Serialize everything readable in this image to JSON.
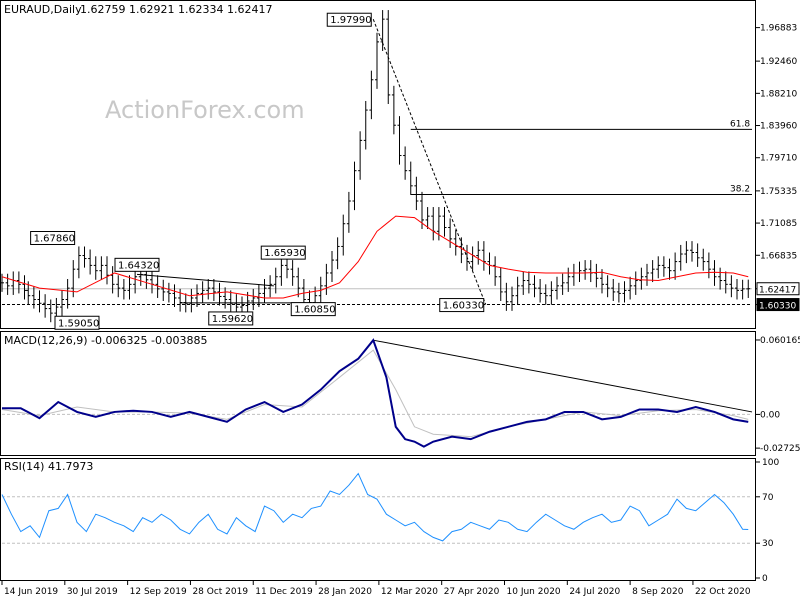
{
  "header": {
    "symbol": "EURAUD,Daily",
    "ohlc": "1.62759 1.62921 1.62334 1.62417"
  },
  "watermark": "ActionForex.com",
  "colors": {
    "price": "#000000",
    "ma": "#ff0000",
    "macd": "#00008b",
    "signal": "#c0c0c0",
    "rsi": "#1e90ff",
    "grid": "#c0c0c0",
    "frame": "#000000"
  },
  "chart_data": [
    {
      "type": "line",
      "title": "EURAUD,Daily",
      "price_axis": {
        "ylim": [
          1.575,
          2.0
        ],
        "ticks": [
          "1.96883",
          "1.92460",
          "1.88210",
          "1.83960",
          "1.79710",
          "1.75335",
          "1.71085",
          "1.66835",
          "1.62417",
          "1.60330"
        ]
      },
      "dates": [
        "14 Jun 2019",
        "30 Jul 2019",
        "12 Sep 2019",
        "28 Oct 2019",
        "11 Dec 2019",
        "28 Jan 2020",
        "12 Mar 2020",
        "27 Apr 2020",
        "10 Jun 2020",
        "24 Jul 2020",
        "8 Sep 2020",
        "22 Oct 2020"
      ],
      "series": [
        {
          "style": "bars",
          "x": [
            0,
            3,
            6,
            9,
            12,
            14,
            17,
            20,
            23,
            26,
            29,
            32,
            35,
            38,
            41,
            44,
            47,
            50,
            53,
            56,
            59,
            62,
            65,
            68,
            71,
            74,
            77,
            80,
            83,
            86,
            89,
            92,
            95,
            98,
            101,
            104,
            107,
            110,
            113,
            116,
            119,
            122,
            125,
            128,
            131,
            134,
            137,
            140,
            143,
            146,
            149,
            152,
            155,
            158,
            161,
            164,
            167,
            170,
            173,
            176,
            179,
            182,
            185,
            188,
            191,
            194,
            197,
            200,
            203,
            206,
            209,
            212,
            215,
            218,
            221,
            224,
            227,
            230,
            233,
            236,
            239,
            242,
            245,
            248,
            251,
            254,
            257,
            260,
            263,
            266,
            269,
            272,
            275,
            278,
            281,
            284,
            287,
            290,
            293,
            296,
            299,
            302,
            305,
            308,
            311,
            314,
            317,
            320,
            323,
            326,
            329,
            332,
            335,
            338,
            341,
            344,
            347,
            350,
            353,
            356,
            359,
            362,
            365,
            368,
            371,
            374,
            377,
            380,
            383,
            386,
            389,
            392,
            395,
            398
          ],
          "values": [
            1.632,
            1.628,
            1.635,
            1.63,
            1.622,
            1.615,
            1.61,
            1.605,
            1.598,
            1.592,
            1.6,
            1.61,
            1.625,
            1.65,
            1.668,
            1.664,
            1.655,
            1.648,
            1.655,
            1.642,
            1.63,
            1.625,
            1.622,
            1.63,
            1.64,
            1.643,
            1.636,
            1.63,
            1.624,
            1.62,
            1.618,
            1.612,
            1.606,
            1.605,
            1.612,
            1.618,
            1.622,
            1.625,
            1.62,
            1.614,
            1.61,
            1.605,
            1.6,
            1.602,
            1.608,
            1.612,
            1.618,
            1.625,
            1.63,
            1.64,
            1.655,
            1.65,
            1.64,
            1.625,
            1.61,
            1.606,
            1.615,
            1.628,
            1.645,
            1.662,
            1.68,
            1.71,
            1.74,
            1.78,
            1.82,
            1.86,
            1.9,
            1.95,
            1.98,
            1.88,
            1.84,
            1.8,
            1.78,
            1.76,
            1.74,
            1.715,
            1.72,
            1.7,
            1.72,
            1.705,
            1.69,
            1.68,
            1.67,
            1.66,
            1.668,
            1.675,
            1.66,
            1.655,
            1.64,
            1.62,
            1.607,
            1.615,
            1.628,
            1.635,
            1.63,
            1.625,
            1.618,
            1.615,
            1.622,
            1.628,
            1.632,
            1.64,
            1.645,
            1.648,
            1.65,
            1.645,
            1.638,
            1.63,
            1.625,
            1.62,
            1.618,
            1.622,
            1.628,
            1.635,
            1.64,
            1.645,
            1.65,
            1.655,
            1.652,
            1.648,
            1.66,
            1.67,
            1.675,
            1.672,
            1.665,
            1.66,
            1.65,
            1.64,
            1.635,
            1.63,
            1.625,
            1.622,
            1.624,
            1.6242
          ]
        },
        {
          "style": "moving-average",
          "x": [
            0,
            20,
            40,
            60,
            80,
            100,
            120,
            140,
            150,
            160,
            170,
            180,
            190,
            200,
            210,
            220,
            230,
            240,
            250,
            260,
            270,
            280,
            290,
            300,
            310,
            320,
            330,
            340,
            350,
            360,
            370,
            380,
            390,
            398
          ],
          "values": [
            1.64,
            1.625,
            1.62,
            1.645,
            1.63,
            1.615,
            1.62,
            1.612,
            1.612,
            1.618,
            1.622,
            1.632,
            1.66,
            1.7,
            1.72,
            1.718,
            1.7,
            1.685,
            1.67,
            1.655,
            1.65,
            1.646,
            1.645,
            1.645,
            1.645,
            1.646,
            1.64,
            1.636,
            1.635,
            1.64,
            1.645,
            1.646,
            1.645,
            1.64
          ]
        }
      ],
      "annotations": [
        {
          "label": "1.97990",
          "x": 198,
          "y": 1.9799
        },
        {
          "label": "1.67860",
          "x": 27,
          "y": 1.6786
        },
        {
          "label": "1.64320",
          "x": 72,
          "y": 1.6432
        },
        {
          "label": "1.65930",
          "x": 150,
          "y": 1.6593
        },
        {
          "label": "1.59050",
          "x": 40,
          "y": 1.5905
        },
        {
          "label": "1.59620",
          "x": 122,
          "y": 1.5962
        },
        {
          "label": "1.60850",
          "x": 166,
          "y": 1.6085
        },
        {
          "label": "1.60330",
          "x": 258,
          "y": 1.6033
        },
        {
          "label": "61.8",
          "y": 1.8345
        },
        {
          "label": "38.2",
          "y": 1.7485
        }
      ]
    },
    {
      "type": "line",
      "title": "MACD(12,26,9) -0.006325 -0.003885",
      "ylim": [
        -0.032,
        0.065
      ],
      "ticks": [
        "0.060165",
        "0.00",
        "-0.02725"
      ],
      "series": [
        {
          "name": "MACD",
          "x": [
            0,
            10,
            20,
            30,
            40,
            50,
            60,
            70,
            80,
            90,
            100,
            110,
            120,
            130,
            140,
            150,
            160,
            170,
            180,
            190,
            198,
            205,
            210,
            215,
            220,
            225,
            230,
            240,
            250,
            260,
            270,
            280,
            290,
            300,
            310,
            320,
            330,
            340,
            350,
            360,
            370,
            380,
            390,
            398
          ],
          "values": [
            0.005,
            0.005,
            -0.003,
            0.01,
            0.002,
            -0.002,
            0.002,
            0.003,
            0.002,
            -0.002,
            0.002,
            -0.002,
            -0.006,
            0.004,
            0.01,
            0.002,
            0.008,
            0.02,
            0.035,
            0.045,
            0.06,
            0.03,
            -0.01,
            -0.02,
            -0.022,
            -0.026,
            -0.022,
            -0.018,
            -0.02,
            -0.014,
            -0.01,
            -0.006,
            -0.004,
            0.002,
            0.002,
            -0.004,
            -0.002,
            0.004,
            0.004,
            0.002,
            0.006,
            0.002,
            -0.004,
            -0.006
          ]
        },
        {
          "name": "Signal",
          "x": [
            0,
            20,
            40,
            60,
            80,
            100,
            120,
            140,
            160,
            180,
            198,
            210,
            220,
            230,
            250,
            270,
            290,
            310,
            330,
            350,
            370,
            390,
            398
          ],
          "values": [
            0.004,
            -0.001,
            0.006,
            0.002,
            0.002,
            0.001,
            -0.004,
            0.008,
            0.006,
            0.03,
            0.052,
            0.02,
            -0.01,
            -0.016,
            -0.018,
            -0.01,
            -0.004,
            0.002,
            -0.001,
            0.003,
            0.004,
            -0.001,
            -0.004
          ]
        }
      ]
    },
    {
      "type": "line",
      "title": "RSI(14) 41.7973",
      "ylim": [
        0,
        100
      ],
      "ticks": [
        "100",
        "70",
        "30",
        "0"
      ],
      "series": [
        {
          "name": "RSI",
          "x": [
            0,
            5,
            10,
            15,
            20,
            25,
            30,
            35,
            40,
            45,
            50,
            55,
            60,
            65,
            70,
            75,
            80,
            85,
            90,
            95,
            100,
            105,
            110,
            115,
            120,
            125,
            130,
            135,
            140,
            145,
            150,
            155,
            160,
            165,
            170,
            175,
            180,
            185,
            190,
            195,
            200,
            205,
            210,
            215,
            220,
            225,
            230,
            235,
            240,
            245,
            250,
            255,
            260,
            265,
            270,
            275,
            280,
            285,
            290,
            295,
            300,
            305,
            310,
            315,
            320,
            325,
            330,
            335,
            340,
            345,
            350,
            355,
            360,
            365,
            370,
            375,
            380,
            385,
            390,
            395,
            398
          ],
          "values": [
            72,
            55,
            40,
            45,
            35,
            58,
            60,
            72,
            48,
            40,
            55,
            52,
            48,
            45,
            40,
            52,
            48,
            55,
            50,
            42,
            38,
            48,
            55,
            42,
            38,
            52,
            45,
            40,
            62,
            58,
            48,
            55,
            52,
            60,
            62,
            75,
            72,
            80,
            90,
            72,
            68,
            55,
            50,
            45,
            48,
            40,
            35,
            32,
            40,
            42,
            48,
            45,
            42,
            50,
            48,
            42,
            40,
            48,
            55,
            50,
            45,
            42,
            48,
            52,
            55,
            48,
            50,
            62,
            58,
            45,
            50,
            55,
            68,
            60,
            58,
            65,
            72,
            65,
            55,
            42,
            41.8
          ]
        }
      ]
    }
  ]
}
